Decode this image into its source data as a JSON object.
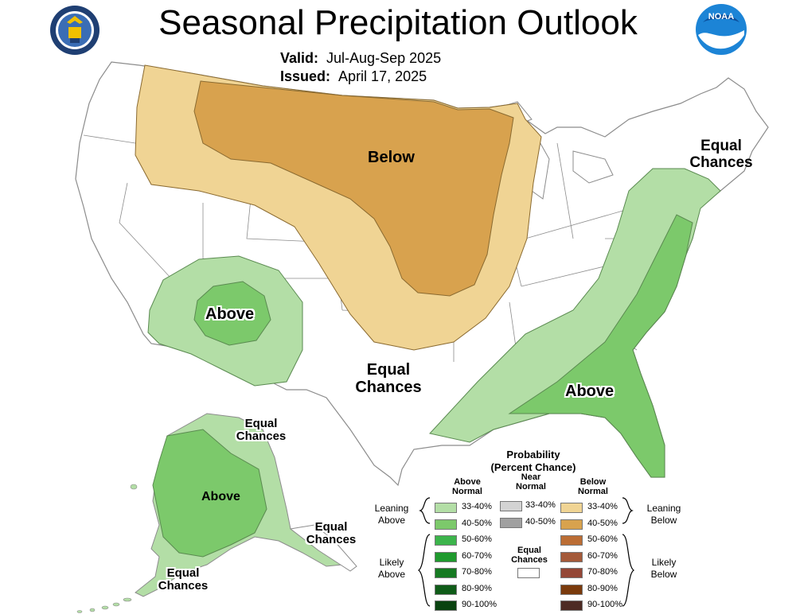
{
  "header": {
    "title": "Seasonal Precipitation Outlook",
    "valid_label": "Valid:",
    "valid_value": "Jul-Aug-Sep 2025",
    "issued_label": "Issued:",
    "issued_value": "April 17, 2025",
    "left_logo": "commerce-seal-icon",
    "right_logo": "noaa-logo-icon",
    "right_logo_text": "NOAA"
  },
  "map_labels": {
    "below": "Below",
    "above_southwest": "Above",
    "equal_texas_1": "Equal",
    "equal_texas_2": "Chances",
    "above_southeast": "Above",
    "equal_northeast_1": "Equal",
    "equal_northeast_2": "Chances",
    "alaska_equal_north_1": "Equal",
    "alaska_equal_north_2": "Chances",
    "alaska_above": "Above",
    "alaska_equal_southeast_1": "Equal",
    "alaska_equal_southeast_2": "Chances",
    "alaska_equal_southwest_1": "Equal",
    "alaska_equal_southwest_2": "Chances"
  },
  "colors": {
    "below_33_40": "#f0d494",
    "below_40_50": "#d8a24e",
    "above_33_40": "#b3dea6",
    "above_40_50": "#7cc96b",
    "land_border": "#8c8c8c"
  },
  "legend": {
    "title_1": "Probability",
    "title_2": "(Percent Chance)",
    "above_head_1": "Above",
    "above_head_2": "Normal",
    "near_head_1": "Near",
    "near_head_2": "Normal",
    "below_head_1": "Below",
    "below_head_2": "Normal",
    "leaning_above_1": "Leaning",
    "leaning_above_2": "Above",
    "likely_above_1": "Likely",
    "likely_above_2": "Above",
    "leaning_below_1": "Leaning",
    "leaning_below_2": "Below",
    "likely_below_1": "Likely",
    "likely_below_2": "Below",
    "equal_1": "Equal",
    "equal_2": "Chances",
    "above_scale": [
      {
        "label": "33-40%",
        "color": "#b3dea6"
      },
      {
        "label": "40-50%",
        "color": "#7cc96b"
      },
      {
        "label": "50-60%",
        "color": "#3cb44b"
      },
      {
        "label": "60-70%",
        "color": "#1f9a2e"
      },
      {
        "label": "70-80%",
        "color": "#167a22"
      },
      {
        "label": "80-90%",
        "color": "#0f5c18"
      },
      {
        "label": "90-100%",
        "color": "#0a4210"
      }
    ],
    "near_scale": [
      {
        "label": "33-40%",
        "color": "#d3d3d3"
      },
      {
        "label": "40-50%",
        "color": "#a0a0a0"
      }
    ],
    "below_scale": [
      {
        "label": "33-40%",
        "color": "#f0d494"
      },
      {
        "label": "40-50%",
        "color": "#d8a24e"
      },
      {
        "label": "50-60%",
        "color": "#bb6d34"
      },
      {
        "label": "60-70%",
        "color": "#a45a3a"
      },
      {
        "label": "70-80%",
        "color": "#944736"
      },
      {
        "label": "80-90%",
        "color": "#7a3a0c"
      },
      {
        "label": "90-100%",
        "color": "#4d2b24"
      }
    ]
  }
}
